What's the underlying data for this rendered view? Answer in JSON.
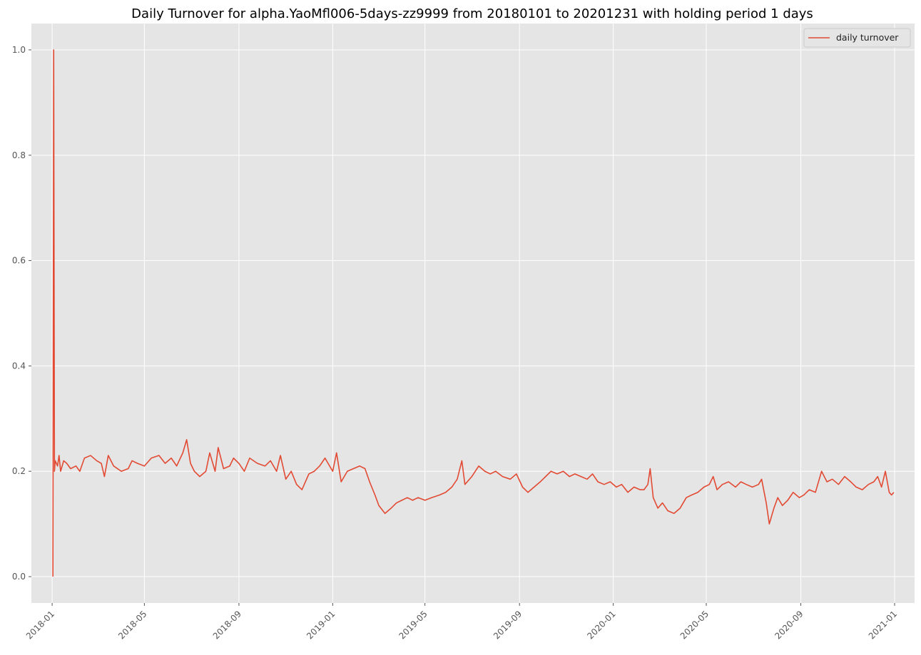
{
  "chart_data": {
    "type": "line",
    "title": "Daily Turnover for alpha.YaoMfl006-5days-zz9999 from 20180101 to 20201231 with holding period 1 days",
    "xlabel": "",
    "ylabel": "",
    "x_axis_type": "date",
    "xlim": [
      "2017-12-05",
      "2021-01-27"
    ],
    "ylim": [
      -0.05,
      1.05
    ],
    "x_ticks": [
      "2018-01",
      "2018-05",
      "2018-09",
      "2019-01",
      "2019-05",
      "2019-09",
      "2020-01",
      "2020-05",
      "2020-09",
      "2021-01"
    ],
    "y_ticks": [
      "0.0",
      "0.2",
      "0.4",
      "0.6",
      "0.8",
      "1.0"
    ],
    "grid": true,
    "legend": {
      "position": "top-right",
      "entries": [
        "daily turnover"
      ]
    },
    "colors": {
      "line": "#e24a33",
      "plot_bg": "#e5e5e5",
      "grid": "#ffffff"
    },
    "series": [
      {
        "name": "daily turnover",
        "points": [
          [
            "2018-01-02",
            0.0
          ],
          [
            "2018-01-03",
            1.0
          ],
          [
            "2018-01-04",
            0.2
          ],
          [
            "2018-01-05",
            0.22
          ],
          [
            "2018-01-08",
            0.21
          ],
          [
            "2018-01-10",
            0.23
          ],
          [
            "2018-01-12",
            0.2
          ],
          [
            "2018-01-16",
            0.22
          ],
          [
            "2018-01-20",
            0.215
          ],
          [
            "2018-01-25",
            0.205
          ],
          [
            "2018-02-01",
            0.21
          ],
          [
            "2018-02-06",
            0.2
          ],
          [
            "2018-02-12",
            0.225
          ],
          [
            "2018-02-20",
            0.23
          ],
          [
            "2018-02-28",
            0.22
          ],
          [
            "2018-03-06",
            0.215
          ],
          [
            "2018-03-10",
            0.19
          ],
          [
            "2018-03-15",
            0.23
          ],
          [
            "2018-03-22",
            0.21
          ],
          [
            "2018-04-01",
            0.2
          ],
          [
            "2018-04-10",
            0.205
          ],
          [
            "2018-04-15",
            0.22
          ],
          [
            "2018-04-22",
            0.215
          ],
          [
            "2018-05-01",
            0.21
          ],
          [
            "2018-05-10",
            0.225
          ],
          [
            "2018-05-20",
            0.23
          ],
          [
            "2018-05-28",
            0.215
          ],
          [
            "2018-06-05",
            0.225
          ],
          [
            "2018-06-12",
            0.21
          ],
          [
            "2018-06-20",
            0.235
          ],
          [
            "2018-06-25",
            0.26
          ],
          [
            "2018-06-30",
            0.215
          ],
          [
            "2018-07-05",
            0.2
          ],
          [
            "2018-07-12",
            0.19
          ],
          [
            "2018-07-20",
            0.2
          ],
          [
            "2018-07-25",
            0.235
          ],
          [
            "2018-08-01",
            0.2
          ],
          [
            "2018-08-05",
            0.245
          ],
          [
            "2018-08-12",
            0.205
          ],
          [
            "2018-08-20",
            0.21
          ],
          [
            "2018-08-25",
            0.225
          ],
          [
            "2018-09-01",
            0.215
          ],
          [
            "2018-09-08",
            0.2
          ],
          [
            "2018-09-15",
            0.225
          ],
          [
            "2018-09-25",
            0.215
          ],
          [
            "2018-10-05",
            0.21
          ],
          [
            "2018-10-12",
            0.22
          ],
          [
            "2018-10-20",
            0.2
          ],
          [
            "2018-10-25",
            0.23
          ],
          [
            "2018-11-01",
            0.185
          ],
          [
            "2018-11-08",
            0.2
          ],
          [
            "2018-11-15",
            0.175
          ],
          [
            "2018-11-22",
            0.165
          ],
          [
            "2018-12-01",
            0.195
          ],
          [
            "2018-12-08",
            0.2
          ],
          [
            "2018-12-15",
            0.21
          ],
          [
            "2018-12-22",
            0.225
          ],
          [
            "2019-01-01",
            0.2
          ],
          [
            "2019-01-06",
            0.235
          ],
          [
            "2019-01-12",
            0.18
          ],
          [
            "2019-01-20",
            0.2
          ],
          [
            "2019-01-28",
            0.205
          ],
          [
            "2019-02-05",
            0.21
          ],
          [
            "2019-02-12",
            0.205
          ],
          [
            "2019-02-18",
            0.18
          ],
          [
            "2019-02-25",
            0.155
          ],
          [
            "2019-03-02",
            0.135
          ],
          [
            "2019-03-10",
            0.12
          ],
          [
            "2019-03-18",
            0.13
          ],
          [
            "2019-03-25",
            0.14
          ],
          [
            "2019-04-01",
            0.145
          ],
          [
            "2019-04-08",
            0.15
          ],
          [
            "2019-04-15",
            0.145
          ],
          [
            "2019-04-22",
            0.15
          ],
          [
            "2019-05-01",
            0.145
          ],
          [
            "2019-05-10",
            0.15
          ],
          [
            "2019-05-20",
            0.155
          ],
          [
            "2019-05-28",
            0.16
          ],
          [
            "2019-06-05",
            0.17
          ],
          [
            "2019-06-12",
            0.185
          ],
          [
            "2019-06-18",
            0.22
          ],
          [
            "2019-06-22",
            0.175
          ],
          [
            "2019-07-01",
            0.19
          ],
          [
            "2019-07-10",
            0.21
          ],
          [
            "2019-07-18",
            0.2
          ],
          [
            "2019-07-25",
            0.195
          ],
          [
            "2019-08-01",
            0.2
          ],
          [
            "2019-08-10",
            0.19
          ],
          [
            "2019-08-20",
            0.185
          ],
          [
            "2019-08-28",
            0.195
          ],
          [
            "2019-09-05",
            0.17
          ],
          [
            "2019-09-12",
            0.16
          ],
          [
            "2019-09-20",
            0.17
          ],
          [
            "2019-09-28",
            0.18
          ],
          [
            "2019-10-05",
            0.19
          ],
          [
            "2019-10-12",
            0.2
          ],
          [
            "2019-10-20",
            0.195
          ],
          [
            "2019-10-28",
            0.2
          ],
          [
            "2019-11-05",
            0.19
          ],
          [
            "2019-11-12",
            0.195
          ],
          [
            "2019-11-20",
            0.19
          ],
          [
            "2019-11-28",
            0.185
          ],
          [
            "2019-12-05",
            0.195
          ],
          [
            "2019-12-12",
            0.18
          ],
          [
            "2019-12-20",
            0.175
          ],
          [
            "2019-12-28",
            0.18
          ],
          [
            "2020-01-05",
            0.17
          ],
          [
            "2020-01-12",
            0.175
          ],
          [
            "2020-01-20",
            0.16
          ],
          [
            "2020-01-28",
            0.17
          ],
          [
            "2020-02-05",
            0.165
          ],
          [
            "2020-02-10",
            0.165
          ],
          [
            "2020-02-15",
            0.175
          ],
          [
            "2020-02-18",
            0.205
          ],
          [
            "2020-02-22",
            0.15
          ],
          [
            "2020-02-28",
            0.13
          ],
          [
            "2020-03-05",
            0.14
          ],
          [
            "2020-03-12",
            0.125
          ],
          [
            "2020-03-20",
            0.12
          ],
          [
            "2020-03-28",
            0.13
          ],
          [
            "2020-04-05",
            0.15
          ],
          [
            "2020-04-12",
            0.155
          ],
          [
            "2020-04-20",
            0.16
          ],
          [
            "2020-04-28",
            0.17
          ],
          [
            "2020-05-05",
            0.175
          ],
          [
            "2020-05-10",
            0.19
          ],
          [
            "2020-05-15",
            0.165
          ],
          [
            "2020-05-22",
            0.175
          ],
          [
            "2020-05-30",
            0.18
          ],
          [
            "2020-06-08",
            0.17
          ],
          [
            "2020-06-15",
            0.18
          ],
          [
            "2020-06-22",
            0.175
          ],
          [
            "2020-06-30",
            0.17
          ],
          [
            "2020-07-08",
            0.175
          ],
          [
            "2020-07-12",
            0.185
          ],
          [
            "2020-07-18",
            0.14
          ],
          [
            "2020-07-22",
            0.1
          ],
          [
            "2020-07-28",
            0.13
          ],
          [
            "2020-08-02",
            0.15
          ],
          [
            "2020-08-08",
            0.135
          ],
          [
            "2020-08-15",
            0.145
          ],
          [
            "2020-08-22",
            0.16
          ],
          [
            "2020-08-30",
            0.15
          ],
          [
            "2020-09-05",
            0.155
          ],
          [
            "2020-09-12",
            0.165
          ],
          [
            "2020-09-20",
            0.16
          ],
          [
            "2020-09-28",
            0.2
          ],
          [
            "2020-10-05",
            0.18
          ],
          [
            "2020-10-12",
            0.185
          ],
          [
            "2020-10-20",
            0.175
          ],
          [
            "2020-10-28",
            0.19
          ],
          [
            "2020-11-05",
            0.18
          ],
          [
            "2020-11-12",
            0.17
          ],
          [
            "2020-11-20",
            0.165
          ],
          [
            "2020-11-28",
            0.175
          ],
          [
            "2020-12-05",
            0.18
          ],
          [
            "2020-12-10",
            0.19
          ],
          [
            "2020-12-15",
            0.17
          ],
          [
            "2020-12-20",
            0.2
          ],
          [
            "2020-12-25",
            0.16
          ],
          [
            "2020-12-28",
            0.155
          ],
          [
            "2020-12-31",
            0.16
          ]
        ]
      }
    ]
  }
}
